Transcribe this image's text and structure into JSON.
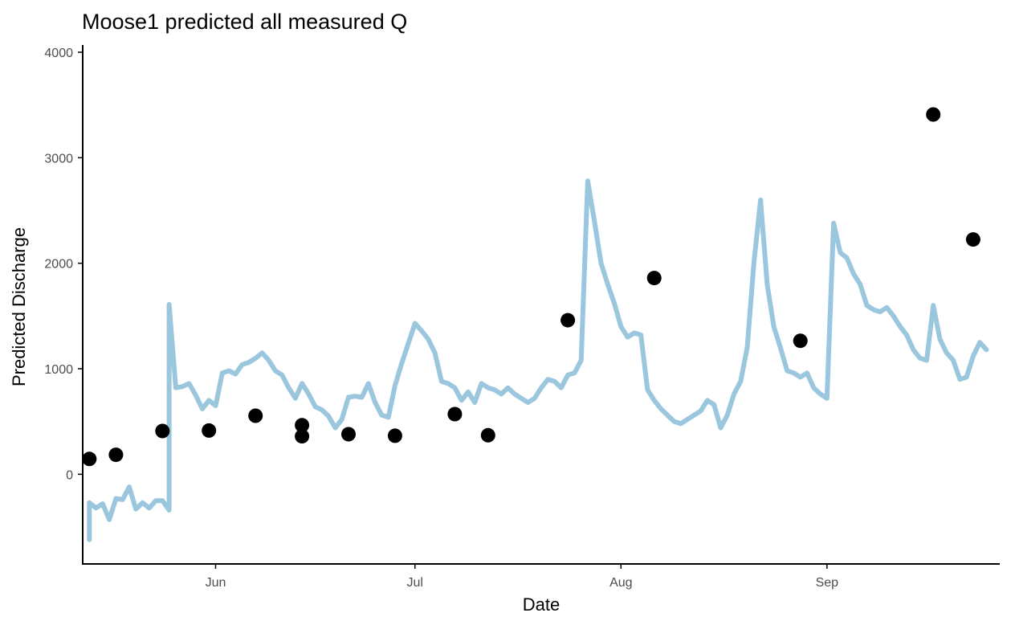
{
  "chart_data": {
    "type": "scatter",
    "title": "Moose1 predicted all measured Q",
    "xlabel": "Date",
    "ylabel": "Predicted Discharge",
    "xlim": [
      "2019-05-12",
      "2019-09-27"
    ],
    "ylim": [
      -850,
      4000
    ],
    "x_ticks": [
      {
        "date": "2019-06-01",
        "label": "Jun"
      },
      {
        "date": "2019-07-01",
        "label": "Jul"
      },
      {
        "date": "2019-08-01",
        "label": "Aug"
      },
      {
        "date": "2019-09-01",
        "label": "Sep"
      }
    ],
    "y_ticks": [
      0,
      1000,
      2000,
      3000,
      4000
    ],
    "grid": false,
    "legend": "none",
    "series": [
      {
        "type": "line",
        "color": "#9ac6de",
        "points": [
          [
            "2019-05-13",
            -620
          ],
          [
            "2019-05-13",
            -270
          ],
          [
            "2019-05-14",
            -320
          ],
          [
            "2019-05-15",
            -280
          ],
          [
            "2019-05-16",
            -430
          ],
          [
            "2019-05-17",
            -230
          ],
          [
            "2019-05-18",
            -240
          ],
          [
            "2019-05-19",
            -120
          ],
          [
            "2019-05-20",
            -330
          ],
          [
            "2019-05-21",
            -270
          ],
          [
            "2019-05-22",
            -320
          ],
          [
            "2019-05-23",
            -250
          ],
          [
            "2019-05-24",
            -250
          ],
          [
            "2019-05-25",
            -340
          ],
          [
            "2019-05-25",
            1610
          ],
          [
            "2019-05-26",
            820
          ],
          [
            "2019-05-27",
            830
          ],
          [
            "2019-05-28",
            860
          ],
          [
            "2019-05-29",
            750
          ],
          [
            "2019-05-30",
            620
          ],
          [
            "2019-05-31",
            700
          ],
          [
            "2019-06-01",
            650
          ],
          [
            "2019-06-02",
            960
          ],
          [
            "2019-06-03",
            980
          ],
          [
            "2019-06-04",
            950
          ],
          [
            "2019-06-05",
            1040
          ],
          [
            "2019-06-06",
            1060
          ],
          [
            "2019-06-07",
            1100
          ],
          [
            "2019-06-08",
            1150
          ],
          [
            "2019-06-09",
            1080
          ],
          [
            "2019-06-10",
            980
          ],
          [
            "2019-06-11",
            940
          ],
          [
            "2019-06-12",
            820
          ],
          [
            "2019-06-13",
            720
          ],
          [
            "2019-06-14",
            860
          ],
          [
            "2019-06-15",
            760
          ],
          [
            "2019-06-16",
            640
          ],
          [
            "2019-06-17",
            610
          ],
          [
            "2019-06-18",
            550
          ],
          [
            "2019-06-19",
            440
          ],
          [
            "2019-06-20",
            520
          ],
          [
            "2019-06-21",
            730
          ],
          [
            "2019-06-22",
            740
          ],
          [
            "2019-06-23",
            730
          ],
          [
            "2019-06-24",
            860
          ],
          [
            "2019-06-25",
            680
          ],
          [
            "2019-06-26",
            560
          ],
          [
            "2019-06-27",
            540
          ],
          [
            "2019-06-28",
            840
          ],
          [
            "2019-06-29",
            1050
          ],
          [
            "2019-06-30",
            1240
          ],
          [
            "2019-07-01",
            1430
          ],
          [
            "2019-07-02",
            1360
          ],
          [
            "2019-07-03",
            1280
          ],
          [
            "2019-07-04",
            1150
          ],
          [
            "2019-07-05",
            880
          ],
          [
            "2019-07-06",
            860
          ],
          [
            "2019-07-07",
            820
          ],
          [
            "2019-07-08",
            700
          ],
          [
            "2019-07-09",
            780
          ],
          [
            "2019-07-10",
            680
          ],
          [
            "2019-07-11",
            860
          ],
          [
            "2019-07-12",
            820
          ],
          [
            "2019-07-13",
            800
          ],
          [
            "2019-07-14",
            760
          ],
          [
            "2019-07-15",
            820
          ],
          [
            "2019-07-16",
            760
          ],
          [
            "2019-07-17",
            720
          ],
          [
            "2019-07-18",
            680
          ],
          [
            "2019-07-19",
            720
          ],
          [
            "2019-07-20",
            820
          ],
          [
            "2019-07-21",
            900
          ],
          [
            "2019-07-22",
            880
          ],
          [
            "2019-07-23",
            820
          ],
          [
            "2019-07-24",
            940
          ],
          [
            "2019-07-25",
            960
          ],
          [
            "2019-07-26",
            1080
          ],
          [
            "2019-07-27",
            2780
          ],
          [
            "2019-07-28",
            2400
          ],
          [
            "2019-07-29",
            2000
          ],
          [
            "2019-07-30",
            1800
          ],
          [
            "2019-07-31",
            1620
          ],
          [
            "2019-08-01",
            1400
          ],
          [
            "2019-08-02",
            1300
          ],
          [
            "2019-08-03",
            1340
          ],
          [
            "2019-08-04",
            1320
          ],
          [
            "2019-08-05",
            800
          ],
          [
            "2019-08-06",
            700
          ],
          [
            "2019-08-07",
            620
          ],
          [
            "2019-08-08",
            560
          ],
          [
            "2019-08-09",
            500
          ],
          [
            "2019-08-10",
            480
          ],
          [
            "2019-08-11",
            520
          ],
          [
            "2019-08-12",
            560
          ],
          [
            "2019-08-13",
            600
          ],
          [
            "2019-08-14",
            700
          ],
          [
            "2019-08-15",
            660
          ],
          [
            "2019-08-16",
            440
          ],
          [
            "2019-08-17",
            560
          ],
          [
            "2019-08-18",
            760
          ],
          [
            "2019-08-19",
            880
          ],
          [
            "2019-08-20",
            1200
          ],
          [
            "2019-08-21",
            2000
          ],
          [
            "2019-08-22",
            2600
          ],
          [
            "2019-08-23",
            1800
          ],
          [
            "2019-08-24",
            1400
          ],
          [
            "2019-08-25",
            1200
          ],
          [
            "2019-08-26",
            980
          ],
          [
            "2019-08-27",
            960
          ],
          [
            "2019-08-28",
            920
          ],
          [
            "2019-08-29",
            960
          ],
          [
            "2019-08-30",
            820
          ],
          [
            "2019-08-31",
            760
          ],
          [
            "2019-09-01",
            720
          ],
          [
            "2019-09-02",
            2380
          ],
          [
            "2019-09-03",
            2100
          ],
          [
            "2019-09-04",
            2050
          ],
          [
            "2019-09-05",
            1900
          ],
          [
            "2019-09-06",
            1800
          ],
          [
            "2019-09-07",
            1600
          ],
          [
            "2019-09-08",
            1560
          ],
          [
            "2019-09-09",
            1540
          ],
          [
            "2019-09-10",
            1580
          ],
          [
            "2019-09-11",
            1500
          ],
          [
            "2019-09-12",
            1400
          ],
          [
            "2019-09-13",
            1320
          ],
          [
            "2019-09-14",
            1180
          ],
          [
            "2019-09-15",
            1100
          ],
          [
            "2019-09-16",
            1080
          ],
          [
            "2019-09-17",
            1600
          ],
          [
            "2019-09-18",
            1280
          ],
          [
            "2019-09-19",
            1150
          ],
          [
            "2019-09-20",
            1080
          ],
          [
            "2019-09-21",
            900
          ],
          [
            "2019-09-22",
            920
          ],
          [
            "2019-09-23",
            1120
          ],
          [
            "2019-09-24",
            1250
          ],
          [
            "2019-09-25",
            1180
          ]
        ]
      },
      {
        "type": "points",
        "color": "#000000",
        "points": [
          [
            "2019-05-13",
            145
          ],
          [
            "2019-05-17",
            185
          ],
          [
            "2019-05-24",
            410
          ],
          [
            "2019-05-31",
            415
          ],
          [
            "2019-06-07",
            555
          ],
          [
            "2019-06-14",
            465
          ],
          [
            "2019-06-14",
            360
          ],
          [
            "2019-06-21",
            380
          ],
          [
            "2019-06-28",
            365
          ],
          [
            "2019-07-07",
            570
          ],
          [
            "2019-07-12",
            370
          ],
          [
            "2019-07-24",
            1460
          ],
          [
            "2019-08-06",
            1860
          ],
          [
            "2019-08-28",
            1265
          ],
          [
            "2019-09-17",
            3410
          ],
          [
            "2019-09-23",
            2225
          ]
        ]
      }
    ]
  }
}
